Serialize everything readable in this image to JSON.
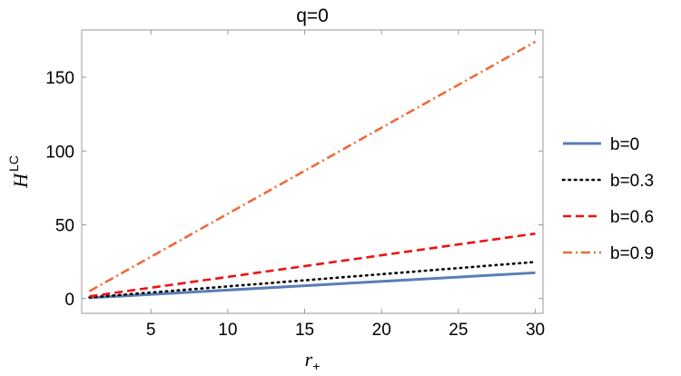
{
  "chart_data": {
    "type": "line",
    "title": "q=0",
    "xlabel": {
      "main": "r",
      "sub": "+"
    },
    "ylabel": {
      "main": "H",
      "sup": "LC"
    },
    "xlim": [
      0.5,
      30.5
    ],
    "ylim": [
      -10,
      182
    ],
    "xticks": [
      5,
      10,
      15,
      20,
      25,
      30
    ],
    "yticks": [
      0,
      50,
      100,
      150
    ],
    "grid": false,
    "legend_position": "right",
    "series": [
      {
        "name": "b=0",
        "color": "#5b7db5",
        "style": "solid",
        "x": [
          1,
          30
        ],
        "y": [
          0.5,
          17.5
        ]
      },
      {
        "name": "b=0.3",
        "color": "#000000",
        "style": "dotted",
        "x": [
          1,
          30
        ],
        "y": [
          0.8,
          24.8
        ]
      },
      {
        "name": "b=0.6",
        "color": "#ee1111",
        "style": "dashed",
        "x": [
          1,
          30
        ],
        "y": [
          1.5,
          44
        ]
      },
      {
        "name": "b=0.9",
        "color": "#ee6a3c",
        "style": "dashdot",
        "x": [
          1,
          30
        ],
        "y": [
          5,
          174
        ]
      }
    ]
  }
}
